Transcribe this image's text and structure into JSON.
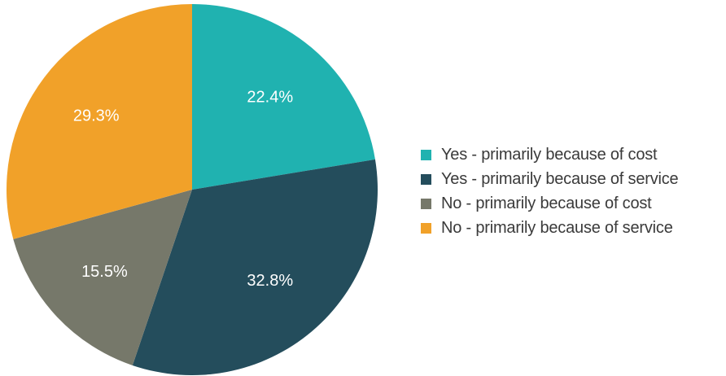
{
  "chart_data": {
    "type": "pie",
    "categories": [
      "Yes - primarily because of cost",
      "Yes - primarily because of service",
      "No - primarily because of cost",
      "No - primarily because of service"
    ],
    "values": [
      22.4,
      32.8,
      15.5,
      29.3
    ],
    "value_labels": [
      "22.4%",
      "32.8%",
      "15.5%",
      "29.3%"
    ],
    "colors": [
      "#20b2b0",
      "#244d5c",
      "#76786a",
      "#f1a129"
    ],
    "start_angle": "12 o'clock",
    "direction": "clockwise",
    "legend_position": "right"
  }
}
